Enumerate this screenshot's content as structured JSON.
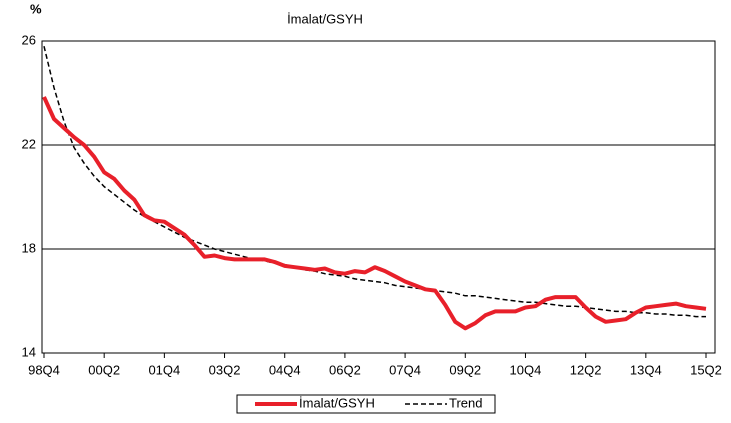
{
  "chart_data": {
    "type": "line",
    "title": "İmalat/GSYH",
    "y_label": "%",
    "categories": [
      "98Q4",
      null,
      null,
      null,
      null,
      null,
      "00Q2",
      null,
      null,
      null,
      null,
      null,
      "01Q4",
      null,
      null,
      null,
      null,
      null,
      "03Q2",
      null,
      null,
      null,
      null,
      null,
      "04Q4",
      null,
      null,
      null,
      null,
      null,
      "06Q2",
      null,
      null,
      null,
      null,
      null,
      "07Q4",
      null,
      null,
      null,
      null,
      null,
      "09Q2",
      null,
      null,
      null,
      null,
      null,
      "10Q4",
      null,
      null,
      null,
      null,
      null,
      "12Q2",
      null,
      null,
      null,
      null,
      null,
      "13Q4",
      null,
      null,
      null,
      null,
      null,
      "15Q2"
    ],
    "series": [
      {
        "name": "İmalat/GSYH",
        "color": "#e8202a",
        "values": [
          23.85,
          23.0,
          22.65,
          22.3,
          22.0,
          21.55,
          20.95,
          20.7,
          20.25,
          19.9,
          19.3,
          19.1,
          19.05,
          18.8,
          18.55,
          18.15,
          17.7,
          17.75,
          17.65,
          17.6,
          17.6,
          17.6,
          17.6,
          17.5,
          17.35,
          17.3,
          17.25,
          17.2,
          17.25,
          17.1,
          17.05,
          17.15,
          17.1,
          17.3,
          17.15,
          16.95,
          16.75,
          16.6,
          16.45,
          16.4,
          15.85,
          15.2,
          14.95,
          15.15,
          15.45,
          15.6,
          15.6,
          15.6,
          15.75,
          15.8,
          16.05,
          16.15,
          16.15,
          16.15,
          15.75,
          15.4,
          15.2,
          15.25,
          15.3,
          15.55,
          15.75,
          15.8,
          15.85,
          15.9,
          15.8,
          15.75,
          15.7
        ]
      },
      {
        "name": "Trend",
        "color": "#000000",
        "dashed": true,
        "values": [
          25.8,
          24.2,
          22.9,
          21.9,
          21.3,
          20.8,
          20.4,
          20.1,
          19.8,
          19.5,
          19.25,
          19.05,
          18.85,
          18.65,
          18.45,
          18.3,
          18.15,
          18.0,
          17.9,
          17.8,
          17.7,
          17.6,
          17.55,
          17.45,
          17.4,
          17.3,
          17.2,
          17.15,
          17.05,
          17.0,
          16.95,
          16.85,
          16.8,
          16.75,
          16.7,
          16.6,
          16.55,
          16.5,
          16.45,
          16.4,
          16.35,
          16.3,
          16.2,
          16.2,
          16.15,
          16.1,
          16.05,
          16.0,
          15.95,
          15.95,
          15.9,
          15.85,
          15.8,
          15.8,
          15.75,
          15.7,
          15.65,
          15.6,
          15.6,
          15.55,
          15.55,
          15.5,
          15.5,
          15.45,
          15.45,
          15.4,
          15.4
        ]
      }
    ],
    "ylim": [
      14,
      26
    ],
    "yticks": [
      14,
      18,
      22,
      26
    ],
    "grid": true,
    "legend": "bottom"
  }
}
